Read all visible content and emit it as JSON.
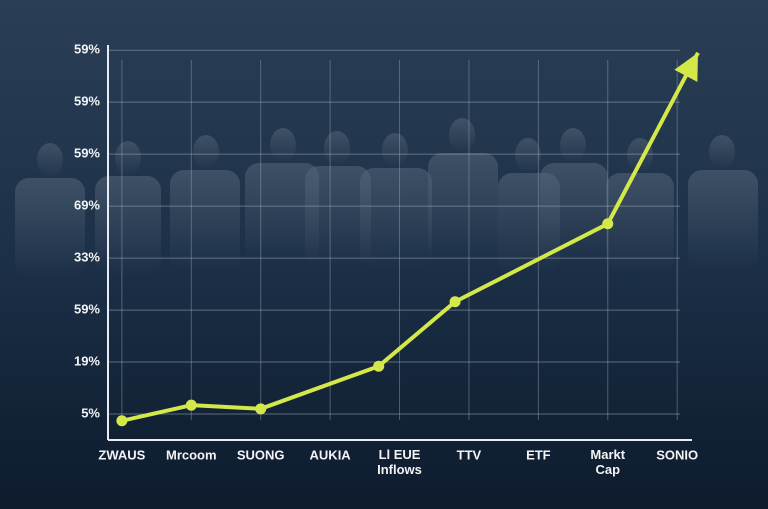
{
  "chart_data": {
    "type": "line",
    "categories": [
      "ZWAUS",
      "Mrcoom",
      "SUONG",
      "AUKIA",
      "Ll EUE\nInflows",
      "TTV",
      "ETF",
      "Markt\nCap",
      "SONIO"
    ],
    "xlim": [
      -0.2,
      8.3
    ],
    "ylim": [
      -0.5,
      7.1
    ],
    "yticks": [
      {
        "value": 0,
        "label": "5%"
      },
      {
        "value": 1,
        "label": "19%"
      },
      {
        "value": 2,
        "label": "59%"
      },
      {
        "value": 3,
        "label": "33%"
      },
      {
        "value": 4,
        "label": "69%"
      },
      {
        "value": 5,
        "label": "59%"
      },
      {
        "value": 6,
        "label": "59%"
      },
      {
        "value": 7,
        "label": "59%"
      }
    ],
    "grid": true,
    "series": [
      {
        "color": "#d4e84a",
        "x": [
          0,
          1,
          2,
          3.7,
          4.8,
          7,
          8.3
        ],
        "values": [
          -0.13,
          0.17,
          0.1,
          0.92,
          2.16,
          3.66,
          6.95
        ]
      }
    ]
  }
}
